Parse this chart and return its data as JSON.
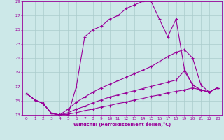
{
  "background_color": "#cce8e8",
  "grid_color": "#aacccc",
  "line_color": "#990099",
  "xlabel": "Windchill (Refroidissement éolien,°C)",
  "xlim": [
    -0.5,
    23.5
  ],
  "ylim": [
    13,
    29
  ],
  "yticks": [
    13,
    15,
    17,
    19,
    21,
    23,
    25,
    27,
    29
  ],
  "xticks": [
    0,
    1,
    2,
    3,
    4,
    5,
    6,
    7,
    8,
    9,
    10,
    11,
    12,
    13,
    14,
    15,
    16,
    17,
    18,
    19,
    20,
    21,
    22,
    23
  ],
  "line1_x": [
    0,
    1,
    2,
    3,
    4,
    5,
    6,
    7,
    8,
    9,
    10,
    11,
    12,
    13,
    14,
    15,
    16,
    17,
    18,
    19,
    20,
    21,
    22,
    23
  ],
  "line1_y": [
    16.0,
    15.1,
    14.6,
    13.2,
    13.0,
    13.0,
    17.0,
    24.0,
    25.0,
    25.5,
    26.5,
    27.0,
    28.0,
    28.5,
    29.0,
    29.0,
    26.5,
    24.0,
    26.5,
    19.5,
    17.2,
    16.5,
    16.2,
    16.8
  ],
  "line2_x": [
    0,
    1,
    2,
    3,
    4,
    5,
    6,
    7,
    8,
    9,
    10,
    11,
    12,
    13,
    14,
    15,
    16,
    17,
    18,
    19,
    20,
    21,
    22,
    23
  ],
  "line2_y": [
    16.0,
    15.1,
    14.6,
    13.2,
    13.0,
    13.8,
    14.8,
    15.5,
    16.2,
    16.8,
    17.3,
    17.8,
    18.3,
    18.8,
    19.3,
    19.8,
    20.5,
    21.2,
    21.8,
    22.2,
    21.0,
    17.2,
    16.2,
    16.8
  ],
  "line3_x": [
    0,
    1,
    2,
    3,
    4,
    5,
    6,
    7,
    8,
    9,
    10,
    11,
    12,
    13,
    14,
    15,
    16,
    17,
    18,
    19,
    20,
    21,
    22,
    23
  ],
  "line3_y": [
    16.0,
    15.1,
    14.6,
    13.2,
    13.0,
    13.3,
    13.8,
    14.2,
    14.7,
    15.1,
    15.5,
    15.8,
    16.1,
    16.4,
    16.7,
    17.0,
    17.3,
    17.6,
    17.9,
    19.2,
    17.2,
    16.5,
    16.2,
    16.8
  ],
  "line4_x": [
    0,
    1,
    2,
    3,
    4,
    5,
    6,
    7,
    8,
    9,
    10,
    11,
    12,
    13,
    14,
    15,
    16,
    17,
    18,
    19,
    20,
    21,
    22,
    23
  ],
  "line4_y": [
    16.0,
    15.1,
    14.6,
    13.2,
    13.0,
    13.1,
    13.3,
    13.6,
    13.8,
    14.1,
    14.3,
    14.6,
    14.8,
    15.1,
    15.3,
    15.6,
    15.8,
    16.1,
    16.3,
    16.5,
    16.8,
    16.5,
    16.2,
    16.8
  ]
}
